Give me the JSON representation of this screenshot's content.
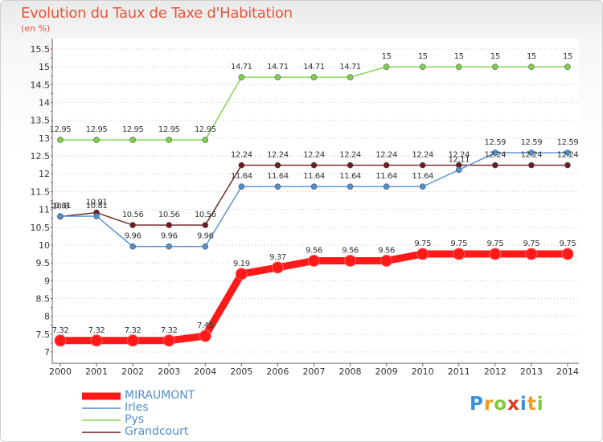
{
  "page": {
    "title": "Evolution du Taux de Taxe d'Habitation",
    "subtitle": "(en %)",
    "logo_text": "Proxiti"
  },
  "chart_data": {
    "type": "line",
    "title": "Evolution du Taux de Taxe d'Habitation",
    "ylabel": "(en %)",
    "xlabel": "",
    "x": [
      2000,
      2001,
      2002,
      2003,
      2004,
      2005,
      2006,
      2007,
      2008,
      2009,
      2010,
      2011,
      2012,
      2013,
      2014
    ],
    "ylim": [
      7,
      15.5
    ],
    "yticks": [
      7,
      7.5,
      8,
      8.5,
      9,
      9.5,
      10,
      10.5,
      11,
      11.5,
      12,
      12.5,
      13,
      13.5,
      14,
      14.5,
      15,
      15.5
    ],
    "grid": "y-dotted",
    "legend": "bottom-left",
    "series": [
      {
        "name": "MIRAUMONT",
        "color": "#ff1a1a",
        "values": [
          7.32,
          7.32,
          7.32,
          7.32,
          7.45,
          9.19,
          9.37,
          9.56,
          9.56,
          9.56,
          9.75,
          9.75,
          9.75,
          9.75,
          9.75
        ],
        "labels": [
          "7.32",
          "7.32",
          "7.32",
          "7.32",
          "7.45",
          "9.19",
          "9.37",
          "9.56",
          "9.56",
          "9.56",
          "9.75",
          "9.75",
          "9.75",
          "9.75",
          "9.75"
        ]
      },
      {
        "name": "Irles",
        "color": "#4f8fd0",
        "values": [
          10.81,
          10.81,
          9.96,
          9.96,
          9.96,
          11.64,
          11.64,
          11.64,
          11.64,
          11.64,
          11.64,
          12.11,
          12.59,
          12.59,
          12.59
        ],
        "labels": [
          "10.81",
          "10.81",
          "9.96",
          "9.96",
          "9.96",
          "11.64",
          "11.64",
          "11.64",
          "11.64",
          "11.64",
          "11.64",
          "12.11",
          "12.59",
          "12.59",
          "12.59"
        ]
      },
      {
        "name": "Pys",
        "color": "#7ed04a",
        "values": [
          12.95,
          12.95,
          12.95,
          12.95,
          12.95,
          14.71,
          14.71,
          14.71,
          14.71,
          15,
          15,
          15,
          15,
          15,
          15
        ],
        "labels": [
          "12.95",
          "12.95",
          "12.95",
          "12.95",
          "12.95",
          "14.71",
          "14.71",
          "14.71",
          "14.71",
          "15",
          "15",
          "15",
          "15",
          "15",
          "15"
        ]
      },
      {
        "name": "Grandcourt",
        "color": "#6b1f1f",
        "values": [
          10.8,
          10.91,
          10.56,
          10.56,
          10.56,
          12.24,
          12.24,
          12.24,
          12.24,
          12.24,
          12.24,
          12.24,
          12.24,
          12.24,
          12.24
        ],
        "labels": [
          "10.8",
          "10.91",
          "10.56",
          "10.56",
          "10.56",
          "12.24",
          "12.24",
          "12.24",
          "12.24",
          "12.24",
          "12.24",
          "12.24",
          "12.24",
          "12.24",
          "12.24"
        ]
      }
    ]
  }
}
